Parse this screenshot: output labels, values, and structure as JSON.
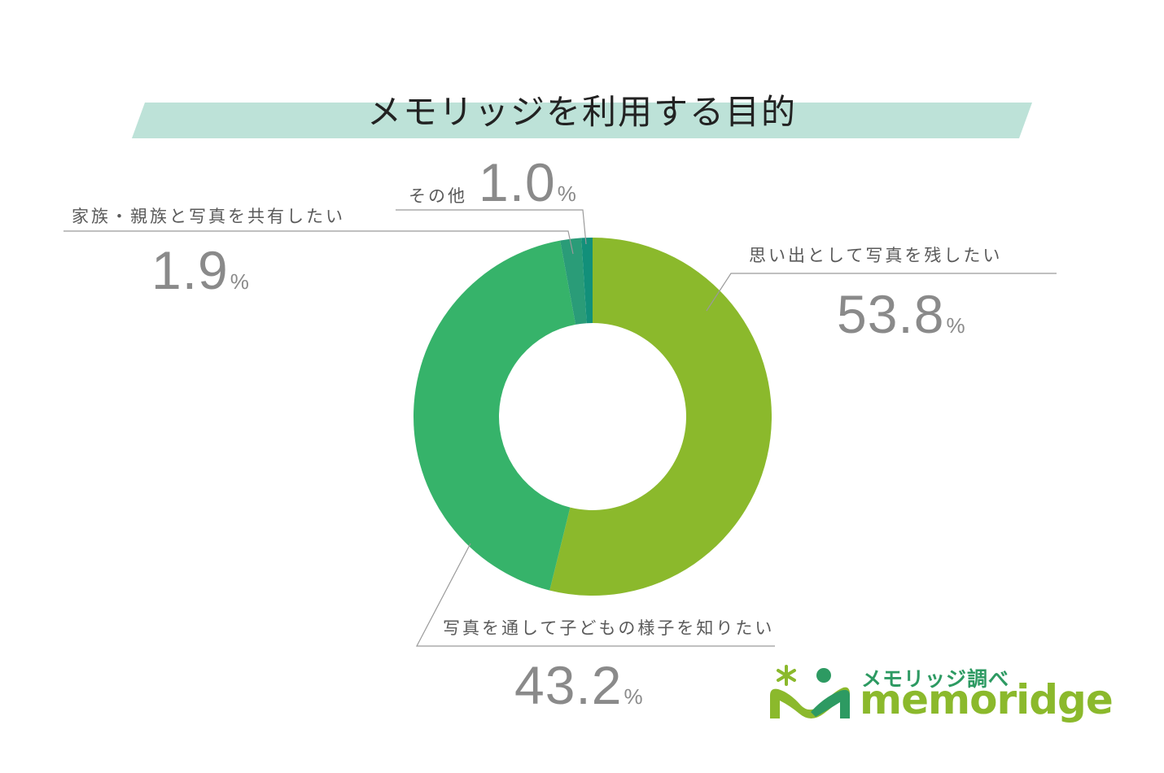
{
  "title": "メモリッジを利用する目的",
  "colors": {
    "band": "#bde2d8",
    "slice_1": "#8bb92c",
    "slice_2": "#36b36a",
    "slice_3": "#2a9c78",
    "slice_4": "#12907a",
    "leader": "#9a9a9a"
  },
  "chart_data": {
    "type": "pie",
    "variant": "donut",
    "title": "メモリッジを利用する目的",
    "unit": "%",
    "categories": [
      "思い出として写真を残したい",
      "写真を通して子どもの様子を知りたい",
      "家族・親族と写真を共有したい",
      "その他"
    ],
    "values": [
      53.8,
      43.2,
      1.9,
      1.0
    ],
    "value_labels": [
      "53.8",
      "43.2",
      "1.9",
      "1.0"
    ]
  },
  "logo": {
    "tagline": "メモリッジ調べ",
    "brand": "memoridge",
    "icon": "memoridge-mascot-icon"
  }
}
